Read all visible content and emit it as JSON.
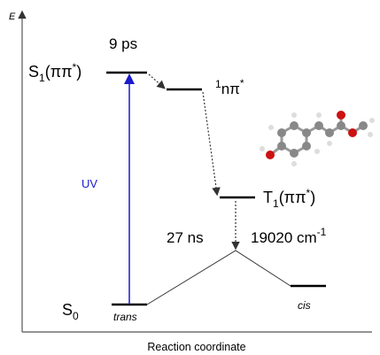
{
  "axis": {
    "energy": "E",
    "reaction": "Reaction coordinate"
  },
  "states": {
    "s1": {
      "symbol": "S",
      "index": "1",
      "open": "(ππ",
      "star": "*",
      "close": ")"
    },
    "n": {
      "mult": "1",
      "symbol": "nπ",
      "star": "*"
    },
    "t1": {
      "symbol": "T",
      "index": "1",
      "open": "(ππ",
      "star": "*",
      "close": ")"
    },
    "s0": {
      "symbol": "S",
      "index": "0"
    }
  },
  "annotations": {
    "s1_lifetime": "9 ps",
    "excitation": "UV",
    "t1_lifetime": "27 ns",
    "t1_energy": {
      "text": "19020 cm",
      "exponent": "-1"
    }
  },
  "isomers": {
    "start": "trans",
    "end": "cis"
  }
}
